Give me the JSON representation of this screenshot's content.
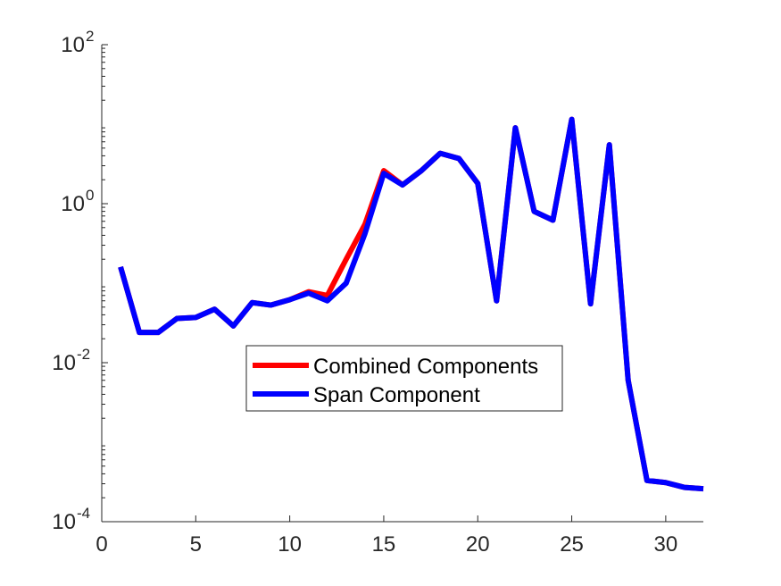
{
  "chart_data": {
    "type": "line",
    "title": "",
    "xlabel": "",
    "ylabel": "",
    "xlim": [
      0,
      32
    ],
    "ylim": [
      0.0001,
      100
    ],
    "yscale": "log",
    "x_ticks": [
      0,
      5,
      10,
      15,
      20,
      25,
      30
    ],
    "x_tick_labels": [
      "0",
      "5",
      "10",
      "15",
      "20",
      "25",
      "30"
    ],
    "y_ticks": [
      0.0001,
      0.01,
      1,
      100
    ],
    "y_tick_labels": [
      {
        "base": "10",
        "exp": "-4"
      },
      {
        "base": "10",
        "exp": "-2"
      },
      {
        "base": "10",
        "exp": "0"
      },
      {
        "base": "10",
        "exp": "2"
      }
    ],
    "grid": false,
    "legend_position": "center",
    "series": [
      {
        "name": "Combined Components",
        "color": "#ff0000",
        "x": [
          1,
          2,
          3,
          4,
          5,
          6,
          7,
          8,
          9,
          10,
          11,
          12,
          13,
          14,
          15,
          16,
          17,
          18,
          19,
          20,
          21,
          22,
          23,
          24,
          25,
          26,
          27,
          28,
          29,
          30,
          31,
          32
        ],
        "values": [
          0.16,
          0.024,
          0.024,
          0.036,
          0.037,
          0.047,
          0.029,
          0.057,
          0.053,
          0.062,
          0.078,
          0.07,
          0.2,
          0.55,
          2.6,
          1.72,
          2.6,
          4.3,
          3.7,
          1.8,
          0.06,
          9.0,
          0.8,
          0.62,
          11.5,
          0.055,
          5.5,
          0.006,
          0.00033,
          0.00031,
          0.00027,
          0.00026
        ]
      },
      {
        "name": "Span Component",
        "color": "#0000ff",
        "x": [
          1,
          2,
          3,
          4,
          5,
          6,
          7,
          8,
          9,
          10,
          11,
          12,
          13,
          14,
          15,
          16,
          17,
          18,
          19,
          20,
          21,
          22,
          23,
          24,
          25,
          26,
          27,
          28,
          29,
          30,
          31,
          32
        ],
        "values": [
          0.16,
          0.024,
          0.024,
          0.036,
          0.037,
          0.047,
          0.029,
          0.057,
          0.053,
          0.062,
          0.075,
          0.06,
          0.1,
          0.42,
          2.4,
          1.72,
          2.6,
          4.3,
          3.7,
          1.8,
          0.06,
          9.0,
          0.8,
          0.62,
          11.5,
          0.055,
          5.5,
          0.006,
          0.00033,
          0.00031,
          0.00027,
          0.00026
        ]
      }
    ]
  }
}
